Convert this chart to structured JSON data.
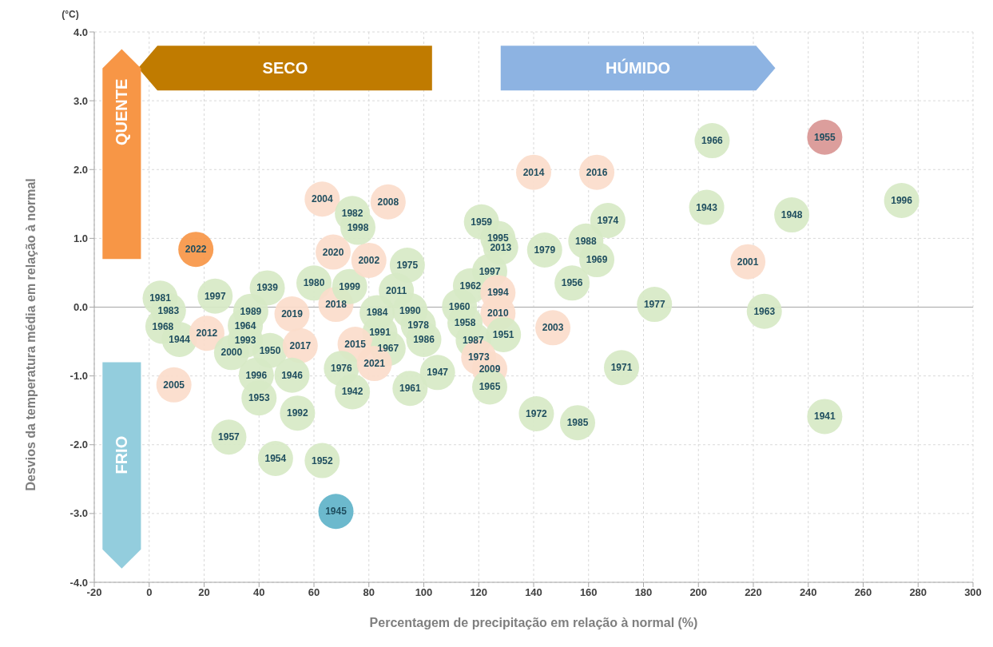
{
  "chart_data": {
    "type": "scatter",
    "xlabel": "Percentagem de precipitação em relação à normal (%)",
    "ylabel": "Desvios da temperatura média em relação à normal",
    "annotations": [
      "(°C)",
      "SECO",
      "HÚMIDO",
      "QUENTE",
      "FRIO",
      {
        "text": "1981",
        "x": 4,
        "y": 0.13
      },
      {
        "text": "1983",
        "x": 7,
        "y": -0.05
      },
      {
        "text": "1968",
        "x": 5,
        "y": -0.28
      },
      {
        "text": "1944",
        "x": 11,
        "y": -0.47
      },
      {
        "text": "1997",
        "x": 24,
        "y": 0.16
      },
      {
        "text": "2012",
        "x": 21,
        "y": -0.38
      },
      {
        "text": "2000",
        "x": 30,
        "y": -0.66
      },
      {
        "text": "1993",
        "x": 35,
        "y": -0.48
      },
      {
        "text": "1964",
        "x": 35,
        "y": -0.27
      },
      {
        "text": "1989",
        "x": 37,
        "y": -0.06
      },
      {
        "text": "1939",
        "x": 43,
        "y": 0.28
      },
      {
        "text": "1950",
        "x": 44,
        "y": -0.63
      },
      {
        "text": "2019",
        "x": 52,
        "y": -0.1
      },
      {
        "text": "2017",
        "x": 55,
        "y": -0.56
      },
      {
        "text": "1980",
        "x": 60,
        "y": 0.35
      },
      {
        "text": "2018",
        "x": 68,
        "y": 0.04
      },
      {
        "text": "1999",
        "x": 73,
        "y": 0.3
      },
      {
        "text": "2020",
        "x": 67,
        "y": 0.8
      },
      {
        "text": "2002",
        "x": 80,
        "y": 0.68
      },
      {
        "text": "2004",
        "x": 63,
        "y": 1.57
      },
      {
        "text": "1982",
        "x": 74,
        "y": 1.36
      },
      {
        "text": "1998",
        "x": 76,
        "y": 1.16
      },
      {
        "text": "2008",
        "x": 87,
        "y": 1.53
      },
      {
        "text": "1975",
        "x": 94,
        "y": 0.61
      },
      {
        "text": "2011",
        "x": 90,
        "y": 0.24
      },
      {
        "text": "1984",
        "x": 83,
        "y": -0.08
      },
      {
        "text": "1990",
        "x": 95,
        "y": -0.05
      },
      {
        "text": "1978",
        "x": 98,
        "y": -0.26
      },
      {
        "text": "1991",
        "x": 84,
        "y": -0.37
      },
      {
        "text": "1986",
        "x": 100,
        "y": -0.47
      },
      {
        "text": "2015",
        "x": 75,
        "y": -0.54
      },
      {
        "text": "1967",
        "x": 87,
        "y": -0.6
      },
      {
        "text": "1976",
        "x": 70,
        "y": -0.89
      },
      {
        "text": "2021",
        "x": 82,
        "y": -0.82
      },
      {
        "text": "1942",
        "x": 74,
        "y": -1.23
      },
      {
        "text": "1961",
        "x": 95,
        "y": -1.18
      },
      {
        "text": "1947",
        "x": 105,
        "y": -0.95
      },
      {
        "text": "1996",
        "x": 39,
        "y": -0.99
      },
      {
        "text": "1946",
        "x": 52,
        "y": -0.99
      },
      {
        "text": "1953",
        "x": 40,
        "y": -1.32
      },
      {
        "text": "1992",
        "x": 54,
        "y": -1.54
      },
      {
        "text": "2005",
        "x": 9,
        "y": -1.13
      },
      {
        "text": "2022",
        "x": 17,
        "y": 0.84
      },
      {
        "text": "1957",
        "x": 29,
        "y": -1.89
      },
      {
        "text": "1954",
        "x": 46,
        "y": -2.2
      },
      {
        "text": "1952",
        "x": 63,
        "y": -2.23
      },
      {
        "text": "1945",
        "x": 68,
        "y": -2.97
      },
      {
        "text": "1959",
        "x": 121,
        "y": 1.24
      },
      {
        "text": "1995",
        "x": 127,
        "y": 1
      },
      {
        "text": "2013",
        "x": 128,
        "y": 0.87
      },
      {
        "text": "1997",
        "x": 124,
        "y": 0.52
      },
      {
        "text": "1962",
        "x": 117,
        "y": 0.31
      },
      {
        "text": "1994",
        "x": 127,
        "y": 0.21
      },
      {
        "text": "1960",
        "x": 113,
        "y": 0.01
      },
      {
        "text": "2010",
        "x": 127,
        "y": -0.09
      },
      {
        "text": "1958",
        "x": 115,
        "y": -0.23
      },
      {
        "text": "1951",
        "x": 129,
        "y": -0.4
      },
      {
        "text": "1987",
        "x": 118,
        "y": -0.48
      },
      {
        "text": "1973",
        "x": 120,
        "y": -0.73
      },
      {
        "text": "2009",
        "x": 124,
        "y": -0.9
      },
      {
        "text": "1965",
        "x": 124,
        "y": -1.16
      },
      {
        "text": "2003",
        "x": 147,
        "y": -0.3
      },
      {
        "text": "2014",
        "x": 140,
        "y": 1.96
      },
      {
        "text": "2016",
        "x": 163,
        "y": 1.96
      },
      {
        "text": "1979",
        "x": 144,
        "y": 0.83
      },
      {
        "text": "1956",
        "x": 154,
        "y": 0.35
      },
      {
        "text": "1988",
        "x": 159,
        "y": 0.96
      },
      {
        "text": "1974",
        "x": 167,
        "y": 1.26
      },
      {
        "text": "1969",
        "x": 163,
        "y": 0.69
      },
      {
        "text": "1972",
        "x": 141,
        "y": -1.55
      },
      {
        "text": "1985",
        "x": 156,
        "y": -1.68
      },
      {
        "text": "1971",
        "x": 172,
        "y": -0.88
      },
      {
        "text": "1977",
        "x": 184,
        "y": 0.04
      },
      {
        "text": "1966",
        "x": 205,
        "y": 2.42
      },
      {
        "text": "1943",
        "x": 203,
        "y": 1.45
      },
      {
        "text": "1948",
        "x": 234,
        "y": 1.34
      },
      {
        "text": "2001",
        "x": 218,
        "y": 0.66
      },
      {
        "text": "1963",
        "x": 224,
        "y": -0.06
      },
      {
        "text": "1955",
        "x": 246,
        "y": 2.47
      },
      {
        "text": "1996",
        "x": 274,
        "y": 1.55
      },
      {
        "text": "1941",
        "x": 246,
        "y": -1.59
      }
    ],
    "xlim": [
      -20,
      300
    ],
    "xticks": [
      -20,
      0,
      20,
      40,
      60,
      80,
      100,
      120,
      140,
      160,
      180,
      200,
      220,
      240,
      260,
      280,
      300
    ],
    "ylim": [
      -4,
      4
    ],
    "yticks": [
      {
        "value": -4,
        "label": "-4.0"
      },
      {
        "value": -3,
        "label": "-3.0"
      },
      {
        "value": -2,
        "label": "-2.0"
      },
      {
        "value": -1,
        "label": "-1.0"
      },
      {
        "value": 0,
        "label": "0.0"
      },
      {
        "value": 1,
        "label": "1.0"
      },
      {
        "value": 2,
        "label": "2.0"
      },
      {
        "value": 3,
        "label": "3.0"
      },
      {
        "value": 4,
        "label": "4.0"
      }
    ],
    "grid": true,
    "marker": "circle",
    "ref_lines": [
      {
        "axis": "y",
        "value": 0,
        "color": "#a6a6a6"
      }
    ],
    "series": [
      {
        "x": [
          4,
          7,
          5,
          11,
          24,
          21,
          30,
          35,
          35,
          37,
          43,
          44,
          52,
          55,
          60,
          68,
          73,
          67,
          80,
          63,
          74,
          76,
          87,
          94,
          90,
          83,
          95,
          98,
          84,
          100,
          75,
          87,
          70,
          82,
          74,
          95,
          105,
          39,
          52,
          40,
          54,
          9,
          17,
          29,
          46,
          63,
          68,
          121,
          127,
          128,
          124,
          117,
          127,
          113,
          127,
          115,
          129,
          118,
          120,
          124,
          124,
          147,
          140,
          163,
          144,
          154,
          159,
          167,
          163,
          141,
          156,
          172,
          184,
          205,
          203,
          234,
          218,
          224,
          246,
          274,
          246
        ],
        "values": [
          0.13,
          -0.05,
          -0.28,
          -0.47,
          0.16,
          -0.38,
          -0.66,
          -0.48,
          -0.27,
          -0.06,
          0.28,
          -0.63,
          -0.1,
          -0.56,
          0.35,
          0.04,
          0.3,
          0.8,
          0.68,
          1.57,
          1.36,
          1.16,
          1.53,
          0.61,
          0.24,
          -0.08,
          -0.05,
          -0.26,
          -0.37,
          -0.47,
          -0.54,
          -0.6,
          -0.89,
          -0.82,
          -1.23,
          -1.18,
          -0.95,
          -0.99,
          -0.99,
          -1.32,
          -1.54,
          -1.13,
          0.84,
          -1.89,
          -2.2,
          -2.23,
          -2.97,
          1.24,
          1,
          0.87,
          0.52,
          0.31,
          0.21,
          0.01,
          -0.09,
          -0.23,
          -0.4,
          -0.48,
          -0.73,
          -0.9,
          -1.16,
          -0.3,
          1.96,
          1.96,
          0.83,
          0.35,
          0.96,
          1.26,
          0.69,
          -1.55,
          -1.68,
          -0.88,
          0.04,
          2.42,
          1.45,
          1.34,
          0.66,
          -0.06,
          2.47,
          1.55,
          -1.59
        ],
        "colors": [
          "#d7e9c6",
          "#d7e9c6",
          "#d7e9c6",
          "#d7e9c6",
          "#d7e9c6",
          "#fbdccb",
          "#d7e9c6",
          "#d7e9c6",
          "#d7e9c6",
          "#d7e9c6",
          "#d7e9c6",
          "#d7e9c6",
          "#fbdccb",
          "#fbdccb",
          "#d7e9c6",
          "#fbdccb",
          "#d7e9c6",
          "#fbdccb",
          "#fbdccb",
          "#fbdccb",
          "#d7e9c6",
          "#d7e9c6",
          "#fbdccb",
          "#d7e9c6",
          "#d7e9c6",
          "#d7e9c6",
          "#d7e9c6",
          "#d7e9c6",
          "#d7e9c6",
          "#d7e9c6",
          "#fbdccb",
          "#d7e9c6",
          "#d7e9c6",
          "#fbdccb",
          "#d7e9c6",
          "#d7e9c6",
          "#d7e9c6",
          "#d7e9c6",
          "#d7e9c6",
          "#d7e9c6",
          "#d7e9c6",
          "#fbdccb",
          "#f79646",
          "#d7e9c6",
          "#d7e9c6",
          "#d7e9c6",
          "#5fb3c9",
          "#d7e9c6",
          "#d7e9c6",
          "#d7e9c6",
          "#d7e9c6",
          "#d7e9c6",
          "#fbdccb",
          "#d7e9c6",
          "#fbdccb",
          "#d7e9c6",
          "#d7e9c6",
          "#d7e9c6",
          "#fbdccb",
          "#fbdccb",
          "#d7e9c6",
          "#fbdccb",
          "#fbdccb",
          "#fbdccb",
          "#d7e9c6",
          "#d7e9c6",
          "#d7e9c6",
          "#d7e9c6",
          "#d7e9c6",
          "#d7e9c6",
          "#d7e9c6",
          "#d7e9c6",
          "#d7e9c6",
          "#d7e9c6",
          "#d7e9c6",
          "#d7e9c6",
          "#fbdccb",
          "#d7e9c6",
          "#d99694",
          "#d7e9c6",
          "#d7e9c6"
        ]
      }
    ]
  }
}
